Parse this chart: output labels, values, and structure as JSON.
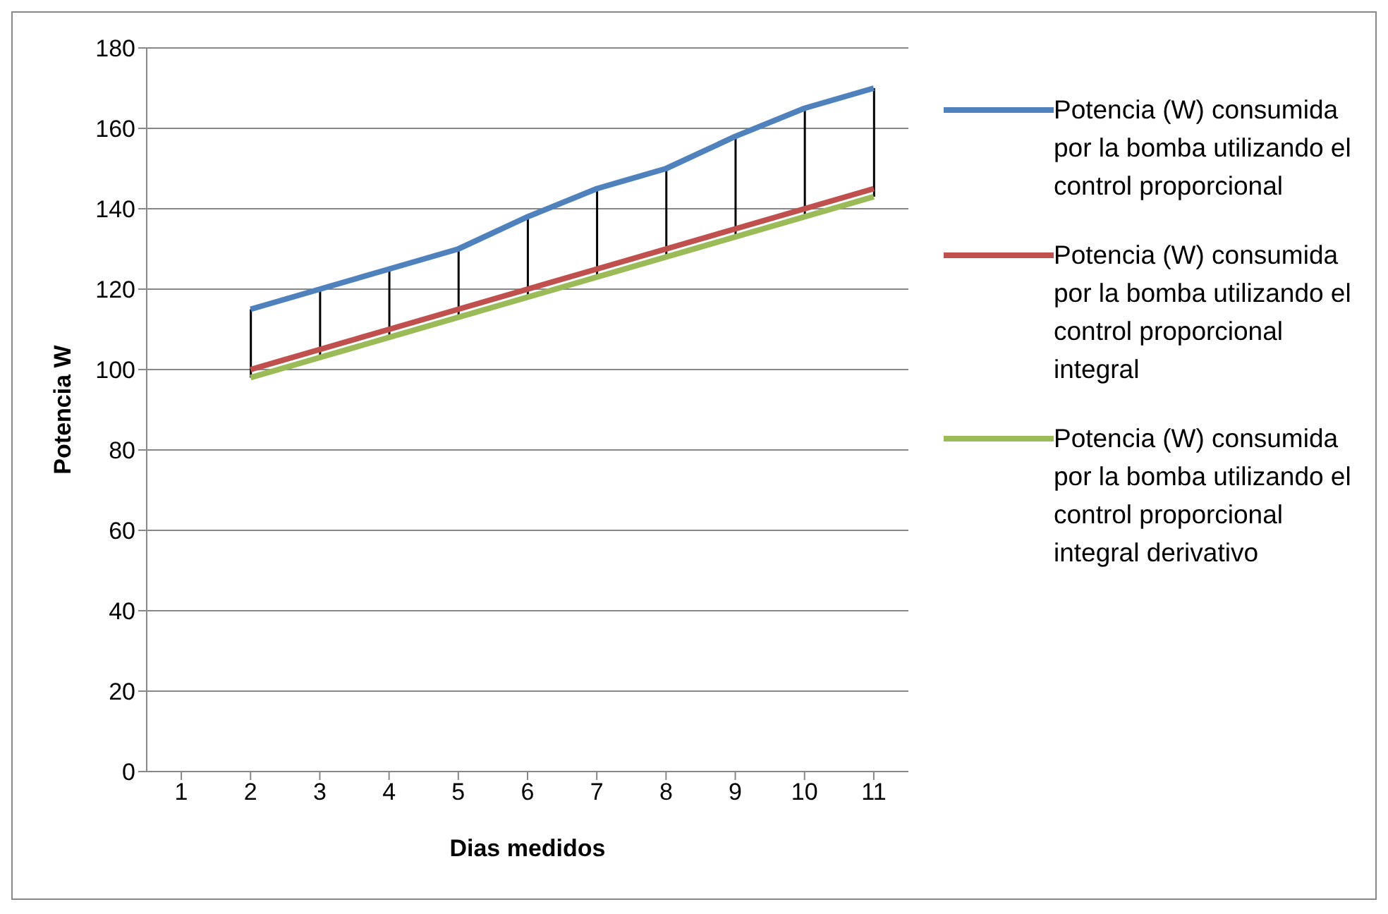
{
  "chart_data": {
    "type": "line",
    "xlabel": "Dias medidos",
    "ylabel": "Potencia W",
    "categories": [
      "1",
      "2",
      "3",
      "4",
      "5",
      "6",
      "7",
      "8",
      "9",
      "10",
      "11"
    ],
    "ylim": [
      0,
      180
    ],
    "yticks": [
      0,
      20,
      40,
      60,
      80,
      100,
      120,
      140,
      160,
      180
    ],
    "grid": "y",
    "legend": "right",
    "marker": "none",
    "line_style": "solid",
    "series": [
      {
        "type": "bar",
        "color": "#000000",
        "base": [
          null,
          98,
          103,
          108,
          113,
          118,
          123,
          128,
          133,
          138,
          143
        ],
        "values": [
          null,
          17,
          17,
          17,
          17,
          20,
          22,
          22,
          25,
          27,
          27
        ]
      },
      {
        "name": "Potencia (W) consumida por la bomba utilizando el control proporcional",
        "color": "#4f81bd",
        "values": [
          null,
          115,
          120,
          125,
          130,
          138,
          145,
          150,
          158,
          165,
          170
        ]
      },
      {
        "name": "Potencia (W) consumida por la bomba utilizando el control proporcional integral",
        "color": "#c0504d",
        "values": [
          null,
          100,
          105,
          110,
          115,
          120,
          125,
          130,
          135,
          140,
          145
        ]
      },
      {
        "name": "Potencia (W) consumida por la bomba utilizando el control proporcional integral derivativo",
        "color": "#9bbb59",
        "values": [
          null,
          98,
          103,
          108,
          113,
          118,
          123,
          128,
          133,
          138,
          143
        ]
      }
    ]
  }
}
